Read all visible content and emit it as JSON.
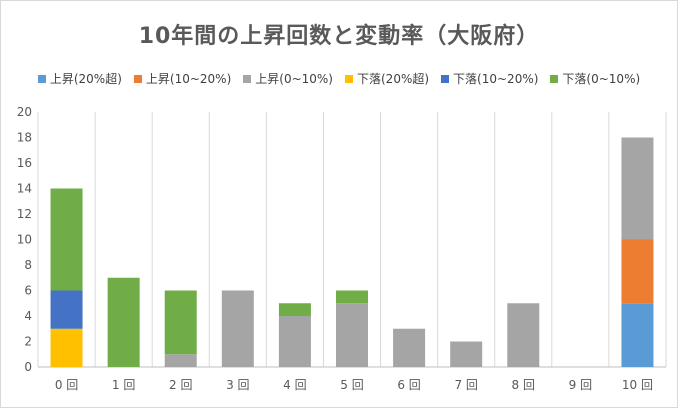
{
  "chart_data": {
    "type": "bar",
    "stacked": true,
    "title": "10年間の上昇回数と変動率（大阪府）",
    "categories": [
      "0 回",
      "1 回",
      "2 回",
      "3 回",
      "4 回",
      "5 回",
      "6 回",
      "7 回",
      "8 回",
      "9 回",
      "10 回"
    ],
    "ylim": [
      0,
      20
    ],
    "yticks": [
      0,
      2,
      4,
      6,
      8,
      10,
      12,
      14,
      16,
      18,
      20
    ],
    "grid": "vertical",
    "legend_position": "top",
    "series": [
      {
        "name": "上昇(20%超)",
        "color": "#5b9bd5",
        "values": [
          0,
          0,
          0,
          0,
          0,
          0,
          0,
          0,
          0,
          0,
          5
        ]
      },
      {
        "name": "上昇(10~20%)",
        "color": "#ed7d31",
        "values": [
          0,
          0,
          0,
          0,
          0,
          0,
          0,
          0,
          0,
          0,
          5
        ]
      },
      {
        "name": "上昇(0~10%)",
        "color": "#a5a5a5",
        "values": [
          0,
          0,
          1,
          6,
          4,
          5,
          3,
          2,
          5,
          0,
          8
        ]
      },
      {
        "name": "下落(20%超)",
        "color": "#ffc000",
        "values": [
          3,
          0,
          0,
          0,
          0,
          0,
          0,
          0,
          0,
          0,
          0
        ]
      },
      {
        "name": "下落(10~20%)",
        "color": "#4472c4",
        "values": [
          3,
          0,
          0,
          0,
          0,
          0,
          0,
          0,
          0,
          0,
          0
        ]
      },
      {
        "name": "下落(0~10%)",
        "color": "#70ad47",
        "values": [
          8,
          7,
          5,
          0,
          1,
          1,
          0,
          0,
          0,
          0,
          0
        ]
      }
    ]
  }
}
